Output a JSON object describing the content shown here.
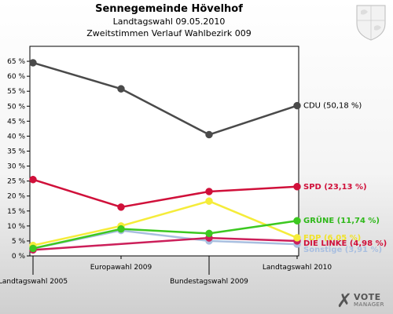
{
  "header": {
    "title": "Sennegemeinde Hövelhof",
    "subtitle1": "Landtagswahl 09.05.2010",
    "subtitle2": "Zweitstimmen Verlauf Wahlbezirk 009"
  },
  "logo": {
    "line1": "VOTE",
    "line2": "MANAGER"
  },
  "chart_data": {
    "type": "line",
    "categories": [
      "Landtagswahl 2005",
      "Europawahl 2009",
      "Bundestagswahl 2009",
      "Landtagswahl 2010"
    ],
    "ylim": [
      0,
      70
    ],
    "yticks": [
      0,
      5,
      10,
      15,
      20,
      25,
      30,
      35,
      40,
      45,
      50,
      55,
      60,
      65
    ],
    "ytick_suffix": " %",
    "grid": false,
    "series": [
      {
        "name": "CDU",
        "label": "CDU (50,18 %)",
        "color": "#4a4a4a",
        "values": [
          64.5,
          55.8,
          40.5,
          50.18
        ]
      },
      {
        "name": "SPD",
        "label": "SPD (23,13 %)",
        "color": "#d0103a",
        "values": [
          25.5,
          16.3,
          21.5,
          23.13
        ]
      },
      {
        "name": "GRÜNE",
        "label": "GRÜNE (11,74 %)",
        "color": "#3cc820",
        "values": [
          2.5,
          9.0,
          7.5,
          11.74
        ]
      },
      {
        "name": "FDP",
        "label": "FDP (6,05 %)",
        "color": "#f5ec3a",
        "values": [
          3.5,
          10.0,
          18.3,
          6.05
        ]
      },
      {
        "name": "DIE LINKE",
        "label": "DIE LINKE (4,98 %)",
        "color": "#cc1f5a",
        "values": [
          2.0,
          null,
          6.0,
          4.98
        ]
      },
      {
        "name": "Sonstige",
        "label": "Sonstige (3,91 %)",
        "color": "#a9bfe0",
        "values": [
          2.5,
          8.5,
          5.0,
          3.91
        ]
      }
    ]
  }
}
